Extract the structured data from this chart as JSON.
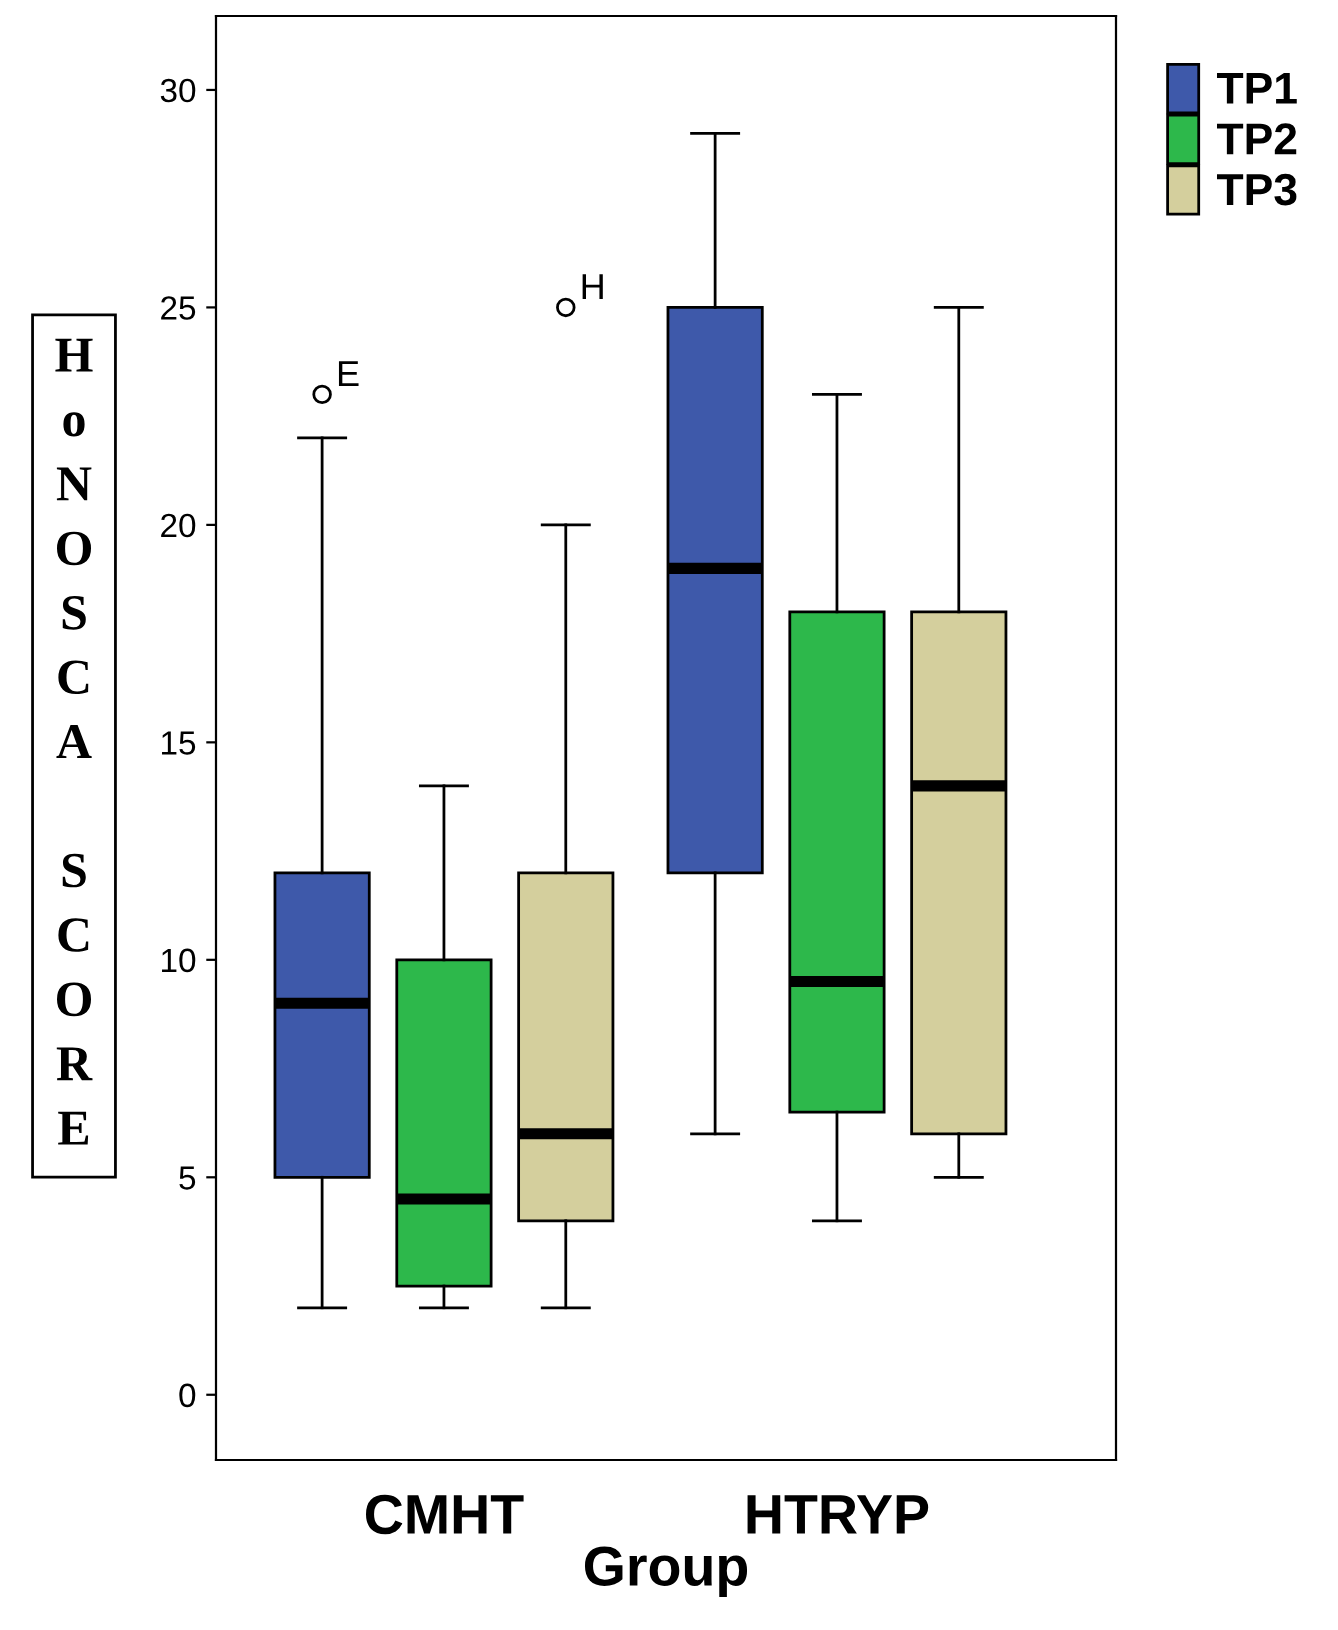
{
  "chart_data": {
    "type": "box",
    "xlabel": "Group",
    "ylabel": "HoNOSCA SCORE",
    "categories": [
      "CMHT",
      "HTRYP"
    ],
    "ylim": [
      -1.5,
      31.7
    ],
    "yticks": [
      0,
      5,
      10,
      15,
      20,
      25,
      30
    ],
    "grid": false,
    "legend": "top right",
    "series": [
      {
        "name": "TP1",
        "color": "#3e59aa",
        "boxes": [
          {
            "low": 2,
            "q1": 5,
            "median": 9,
            "q3": 12,
            "high": 22,
            "outliers": [
              23
            ]
          },
          {
            "low": 6,
            "q1": 12,
            "median": 19,
            "q3": 25,
            "high": 29
          }
        ]
      },
      {
        "name": "TP2",
        "color": "#2db84b",
        "boxes": [
          {
            "low": 2,
            "q1": 2.5,
            "median": 4.5,
            "q3": 10,
            "high": 14
          },
          {
            "low": 4,
            "q1": 6.5,
            "median": 9.5,
            "q3": 18,
            "high": 23
          }
        ]
      },
      {
        "name": "TP3",
        "color": "#d4cf9d",
        "boxes": [
          {
            "low": 2,
            "q1": 4,
            "median": 6,
            "q3": 12,
            "high": 20,
            "outliers": [
              25
            ]
          },
          {
            "low": 5,
            "q1": 6,
            "median": 14,
            "q3": 18,
            "high": 25
          }
        ]
      }
    ],
    "annotations": [
      "E",
      "H"
    ]
  }
}
